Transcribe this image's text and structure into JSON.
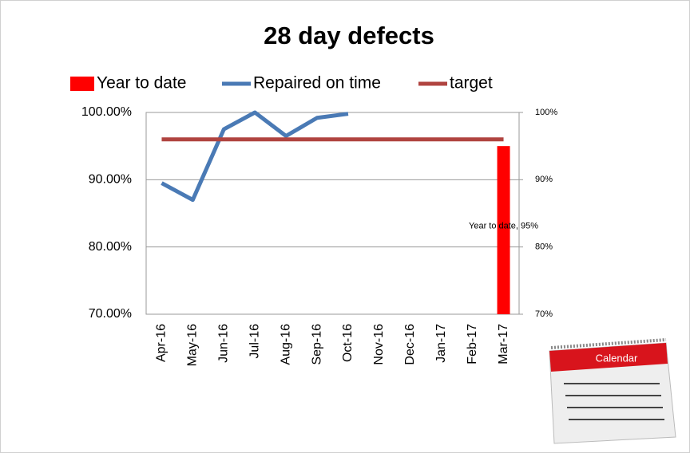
{
  "chart_data": {
    "type": "bar_line",
    "title": "28 day defects",
    "categories": [
      "Apr-16",
      "May-16",
      "Jun-16",
      "Jul-16",
      "Aug-16",
      "Sep-16",
      "Oct-16",
      "Nov-16",
      "Dec-16",
      "Jan-17",
      "Feb-17",
      "Mar-17"
    ],
    "series": [
      {
        "name": "Year to date",
        "type": "bar",
        "color": "#ff0000",
        "axis": "y2",
        "values": [
          null,
          null,
          null,
          null,
          null,
          null,
          null,
          null,
          null,
          null,
          null,
          95
        ],
        "value_labels": [
          null,
          null,
          null,
          null,
          null,
          null,
          null,
          null,
          null,
          null,
          null,
          "Year to date, 95%"
        ]
      },
      {
        "name": "Repaired on time",
        "type": "line",
        "color": "#4a7ab5",
        "values": [
          89.5,
          87,
          97.5,
          100,
          96.5,
          99.2,
          99.8,
          null,
          null,
          null,
          null,
          null
        ]
      },
      {
        "name": "target",
        "type": "line",
        "color": "#b04440",
        "values": [
          96,
          96,
          96,
          96,
          96,
          96,
          96,
          96,
          96,
          96,
          96,
          96
        ]
      }
    ],
    "ylim": [
      70,
      100
    ],
    "yticks": [
      {
        "value": 70,
        "label": "70.00%"
      },
      {
        "value": 80,
        "label": "80.00%"
      },
      {
        "value": 90,
        "label": "90.00%"
      },
      {
        "value": 100,
        "label": "100.00%"
      }
    ],
    "y2lim": [
      70,
      100
    ],
    "y2ticks": [
      {
        "value": 70,
        "label": "70%"
      },
      {
        "value": 80,
        "label": "80%"
      },
      {
        "value": 90,
        "label": "90%"
      },
      {
        "value": 100,
        "label": "100%"
      }
    ],
    "grid": true,
    "legend": "top"
  },
  "calendar_label": "Calendar"
}
